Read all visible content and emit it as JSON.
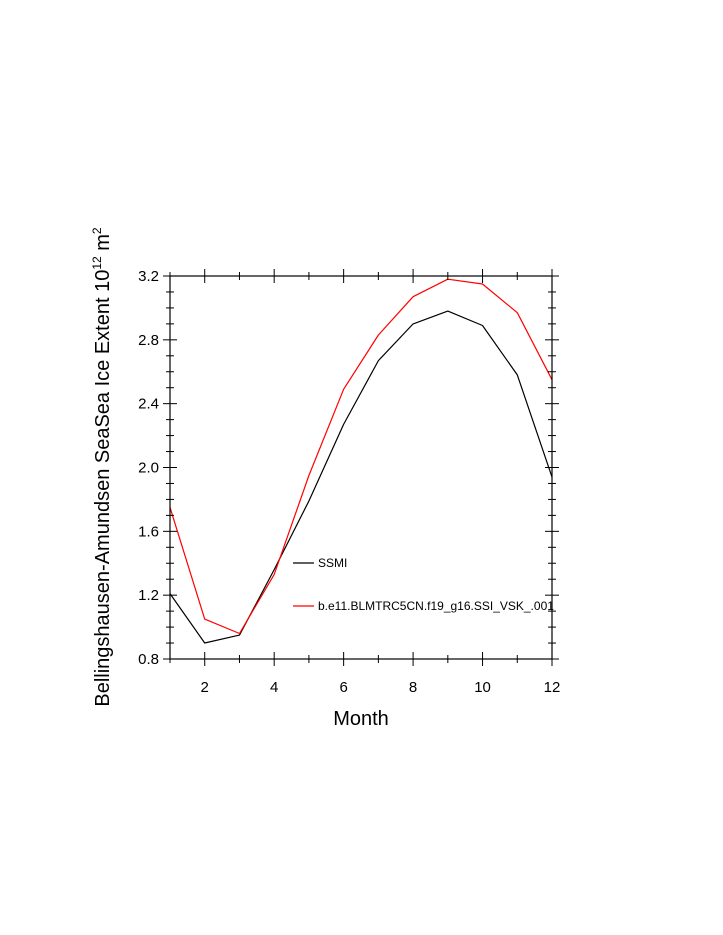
{
  "chart_data": {
    "type": "line",
    "xlabel": "Month",
    "ylabel_main": "Bellingshausen-Amundsen SeaSea Ice Extent 10",
    "ylabel_exp": "12",
    "ylabel_unit": " m",
    "ylabel_unit_exp": "2",
    "xlim": [
      1,
      12
    ],
    "ylim": [
      0.8,
      3.2
    ],
    "x_ticks": [
      2,
      4,
      6,
      8,
      10,
      12
    ],
    "x_tick_labels": [
      "2",
      "4",
      "6",
      "8",
      "10",
      "12"
    ],
    "y_ticks": [
      0.8,
      1.2,
      1.6,
      2.0,
      2.4,
      2.8,
      3.2
    ],
    "y_tick_labels": [
      "0.8",
      "1.2",
      "1.6",
      "2.0",
      "2.4",
      "2.8",
      "3.2"
    ],
    "x": [
      1,
      2,
      3,
      4,
      5,
      6,
      7,
      8,
      9,
      10,
      11,
      12
    ],
    "series": [
      {
        "name": "SSMI",
        "color": "#000000",
        "values": [
          1.21,
          0.9,
          0.95,
          1.36,
          1.79,
          2.27,
          2.67,
          2.9,
          2.98,
          2.89,
          2.58,
          1.94
        ]
      },
      {
        "name": "b.e11.BLMTRC5CN.f19_g16.SSI_VSK_.001",
        "color": "#ff0000",
        "values": [
          1.75,
          1.05,
          0.96,
          1.33,
          1.95,
          2.49,
          2.83,
          3.07,
          3.18,
          3.15,
          2.97,
          2.55
        ]
      }
    ],
    "legend_position": "lower-right",
    "grid": false
  }
}
